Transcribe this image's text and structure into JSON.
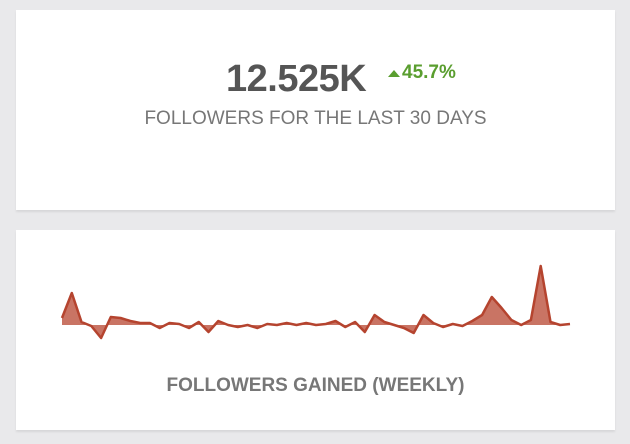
{
  "kpi": {
    "value": "12.525K",
    "change": "45.7%",
    "label": "FOLLOWERS FOR THE LAST 30 DAYS"
  },
  "sparkline": {
    "type": "area",
    "title": "FOLLOWERS GAINED (WEEKLY)",
    "color": "#b5442f",
    "fill": "#c97464",
    "values": [
      7,
      32,
      3,
      -1,
      -13,
      8,
      7,
      4,
      2,
      2,
      -3,
      2,
      1,
      -3,
      3,
      -7,
      4,
      0,
      -2,
      0,
      -3,
      1,
      0,
      2,
      0,
      2,
      0,
      1,
      4,
      -2,
      3,
      -7,
      10,
      3,
      0,
      -3,
      -8,
      10,
      2,
      -2,
      1,
      -1,
      4,
      10,
      28,
      17,
      5,
      0,
      5,
      59,
      3,
      0,
      1
    ]
  }
}
